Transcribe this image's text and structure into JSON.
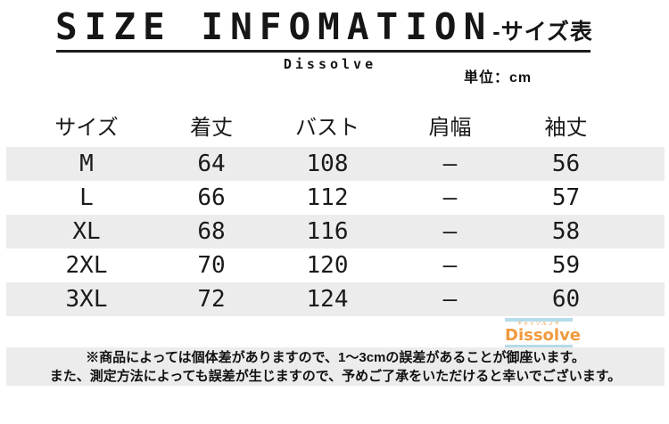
{
  "header": {
    "title": "SIZE INFOMATION",
    "title_suffix": "-サイズ表",
    "brand": "Dissolve",
    "unit_label": "単位：cm"
  },
  "chart_data": {
    "type": "table",
    "title": "SIZE INFOMATION -サイズ表",
    "unit": "cm",
    "columns": [
      "サイズ",
      "着丈",
      "バスト",
      "肩幅",
      "袖丈"
    ],
    "rows": [
      [
        "M",
        "64",
        "108",
        "–",
        "56"
      ],
      [
        "L",
        "66",
        "112",
        "–",
        "57"
      ],
      [
        "XL",
        "68",
        "116",
        "–",
        "58"
      ],
      [
        "2XL",
        "70",
        "120",
        "–",
        "59"
      ],
      [
        "3XL",
        "72",
        "124",
        "–",
        "60"
      ]
    ],
    "stripe_color": "#ececec",
    "striped_row_indexes": [
      0,
      2,
      4
    ]
  },
  "logo": {
    "tagline": "＊ディソルブ＊",
    "word": "Dissolve",
    "bar_color": "#b5dcea",
    "word_color": "#f09a3e",
    "tagline_color": "#ef9a3c"
  },
  "footer": {
    "line1": "※商品によっては個体差がありますので、1～3cmの誤差があることが御座います。",
    "line2": "また、測定方法によっても誤差が生じますので、予めご了承をいただけると幸いでございます。"
  }
}
